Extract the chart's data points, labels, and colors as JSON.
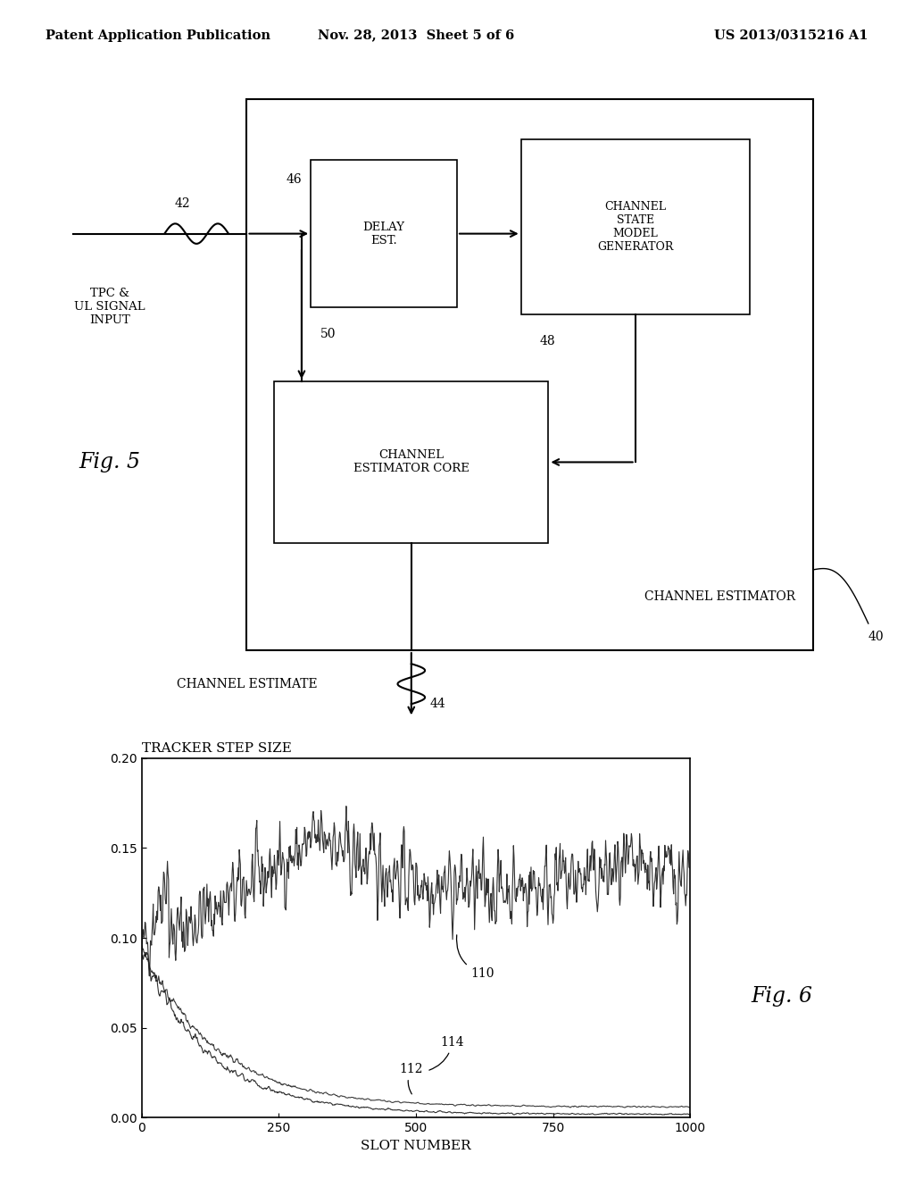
{
  "bg_color": "#ffffff",
  "header_left": "Patent Application Publication",
  "header_center": "Nov. 28, 2013  Sheet 5 of 6",
  "header_right": "US 2013/0315216 A1",
  "fig5_label": "Fig. 5",
  "fig6_label": "Fig. 6",
  "outer_box_label": "CHANNEL ESTIMATOR",
  "outer_box_num": "40",
  "delay_est_label": "DELAY\nEST.",
  "delay_est_num": "46",
  "channel_state_label": "CHANNEL\nSTATE\nMODEL\nGENERATOR",
  "channel_state_num": "48",
  "channel_est_core_label": "CHANNEL\nESTIMATOR CORE",
  "channel_est_core_num": "50",
  "input_label": "TPC &\nUL SIGNAL\nINPUT",
  "input_num": "42",
  "output_label": "CHANNEL ESTIMATE",
  "output_num": "44",
  "plot_title": "TRACKER STEP SIZE",
  "plot_xlabel": "SLOT NUMBER",
  "plot_xlim": [
    0,
    1000
  ],
  "plot_ylim": [
    0.0,
    0.2
  ],
  "plot_yticks": [
    0.0,
    0.05,
    0.1,
    0.15,
    0.2
  ],
  "plot_xticks": [
    0,
    250,
    500,
    750,
    1000
  ],
  "label_110": "110",
  "label_112": "112",
  "label_114": "114",
  "line_color": "#1a1a1a",
  "seed": 42
}
